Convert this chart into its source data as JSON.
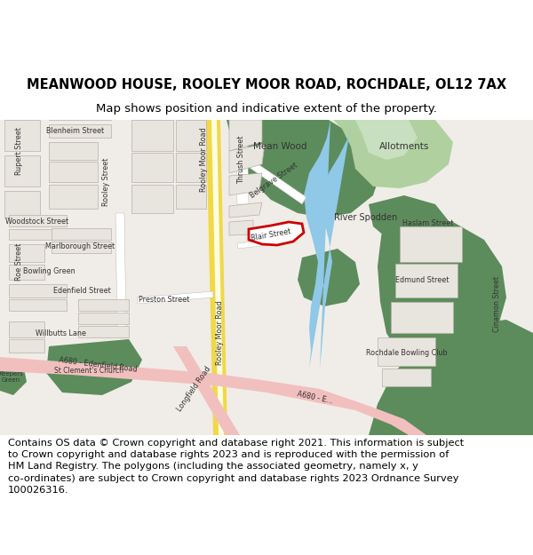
{
  "title": "MEANWOOD HOUSE, ROOLEY MOOR ROAD, ROCHDALE, OL12 7AX",
  "subtitle": "Map shows position and indicative extent of the property.",
  "copyright_text": "Contains OS data © Crown copyright and database right 2021. This information is subject\nto Crown copyright and database rights 2023 and is reproduced with the permission of\nHM Land Registry. The polygons (including the associated geometry, namely x, y\nco-ordinates) are subject to Crown copyright and database rights 2023 Ordnance Survey\n100026316.",
  "title_fontsize": 10.5,
  "subtitle_fontsize": 9.5,
  "copyright_fontsize": 8.2,
  "map_bg": "#f0ede8",
  "road_yellow": "#f0d848",
  "road_pink": "#f2bfbf",
  "road_white": "#ffffff",
  "green_dark": "#5c8c5c",
  "green_light": "#b0d0a0",
  "green_pale": "#c8dfc0",
  "water_blue": "#90c8e8",
  "building_fill": "#e8e4de",
  "building_stroke": "#b8b0a8",
  "plot_fill": "#ffffff",
  "plot_stroke": "#cc0000",
  "text_color": "#333333",
  "fig_width": 6.0,
  "fig_height": 6.25,
  "dpi": 100
}
